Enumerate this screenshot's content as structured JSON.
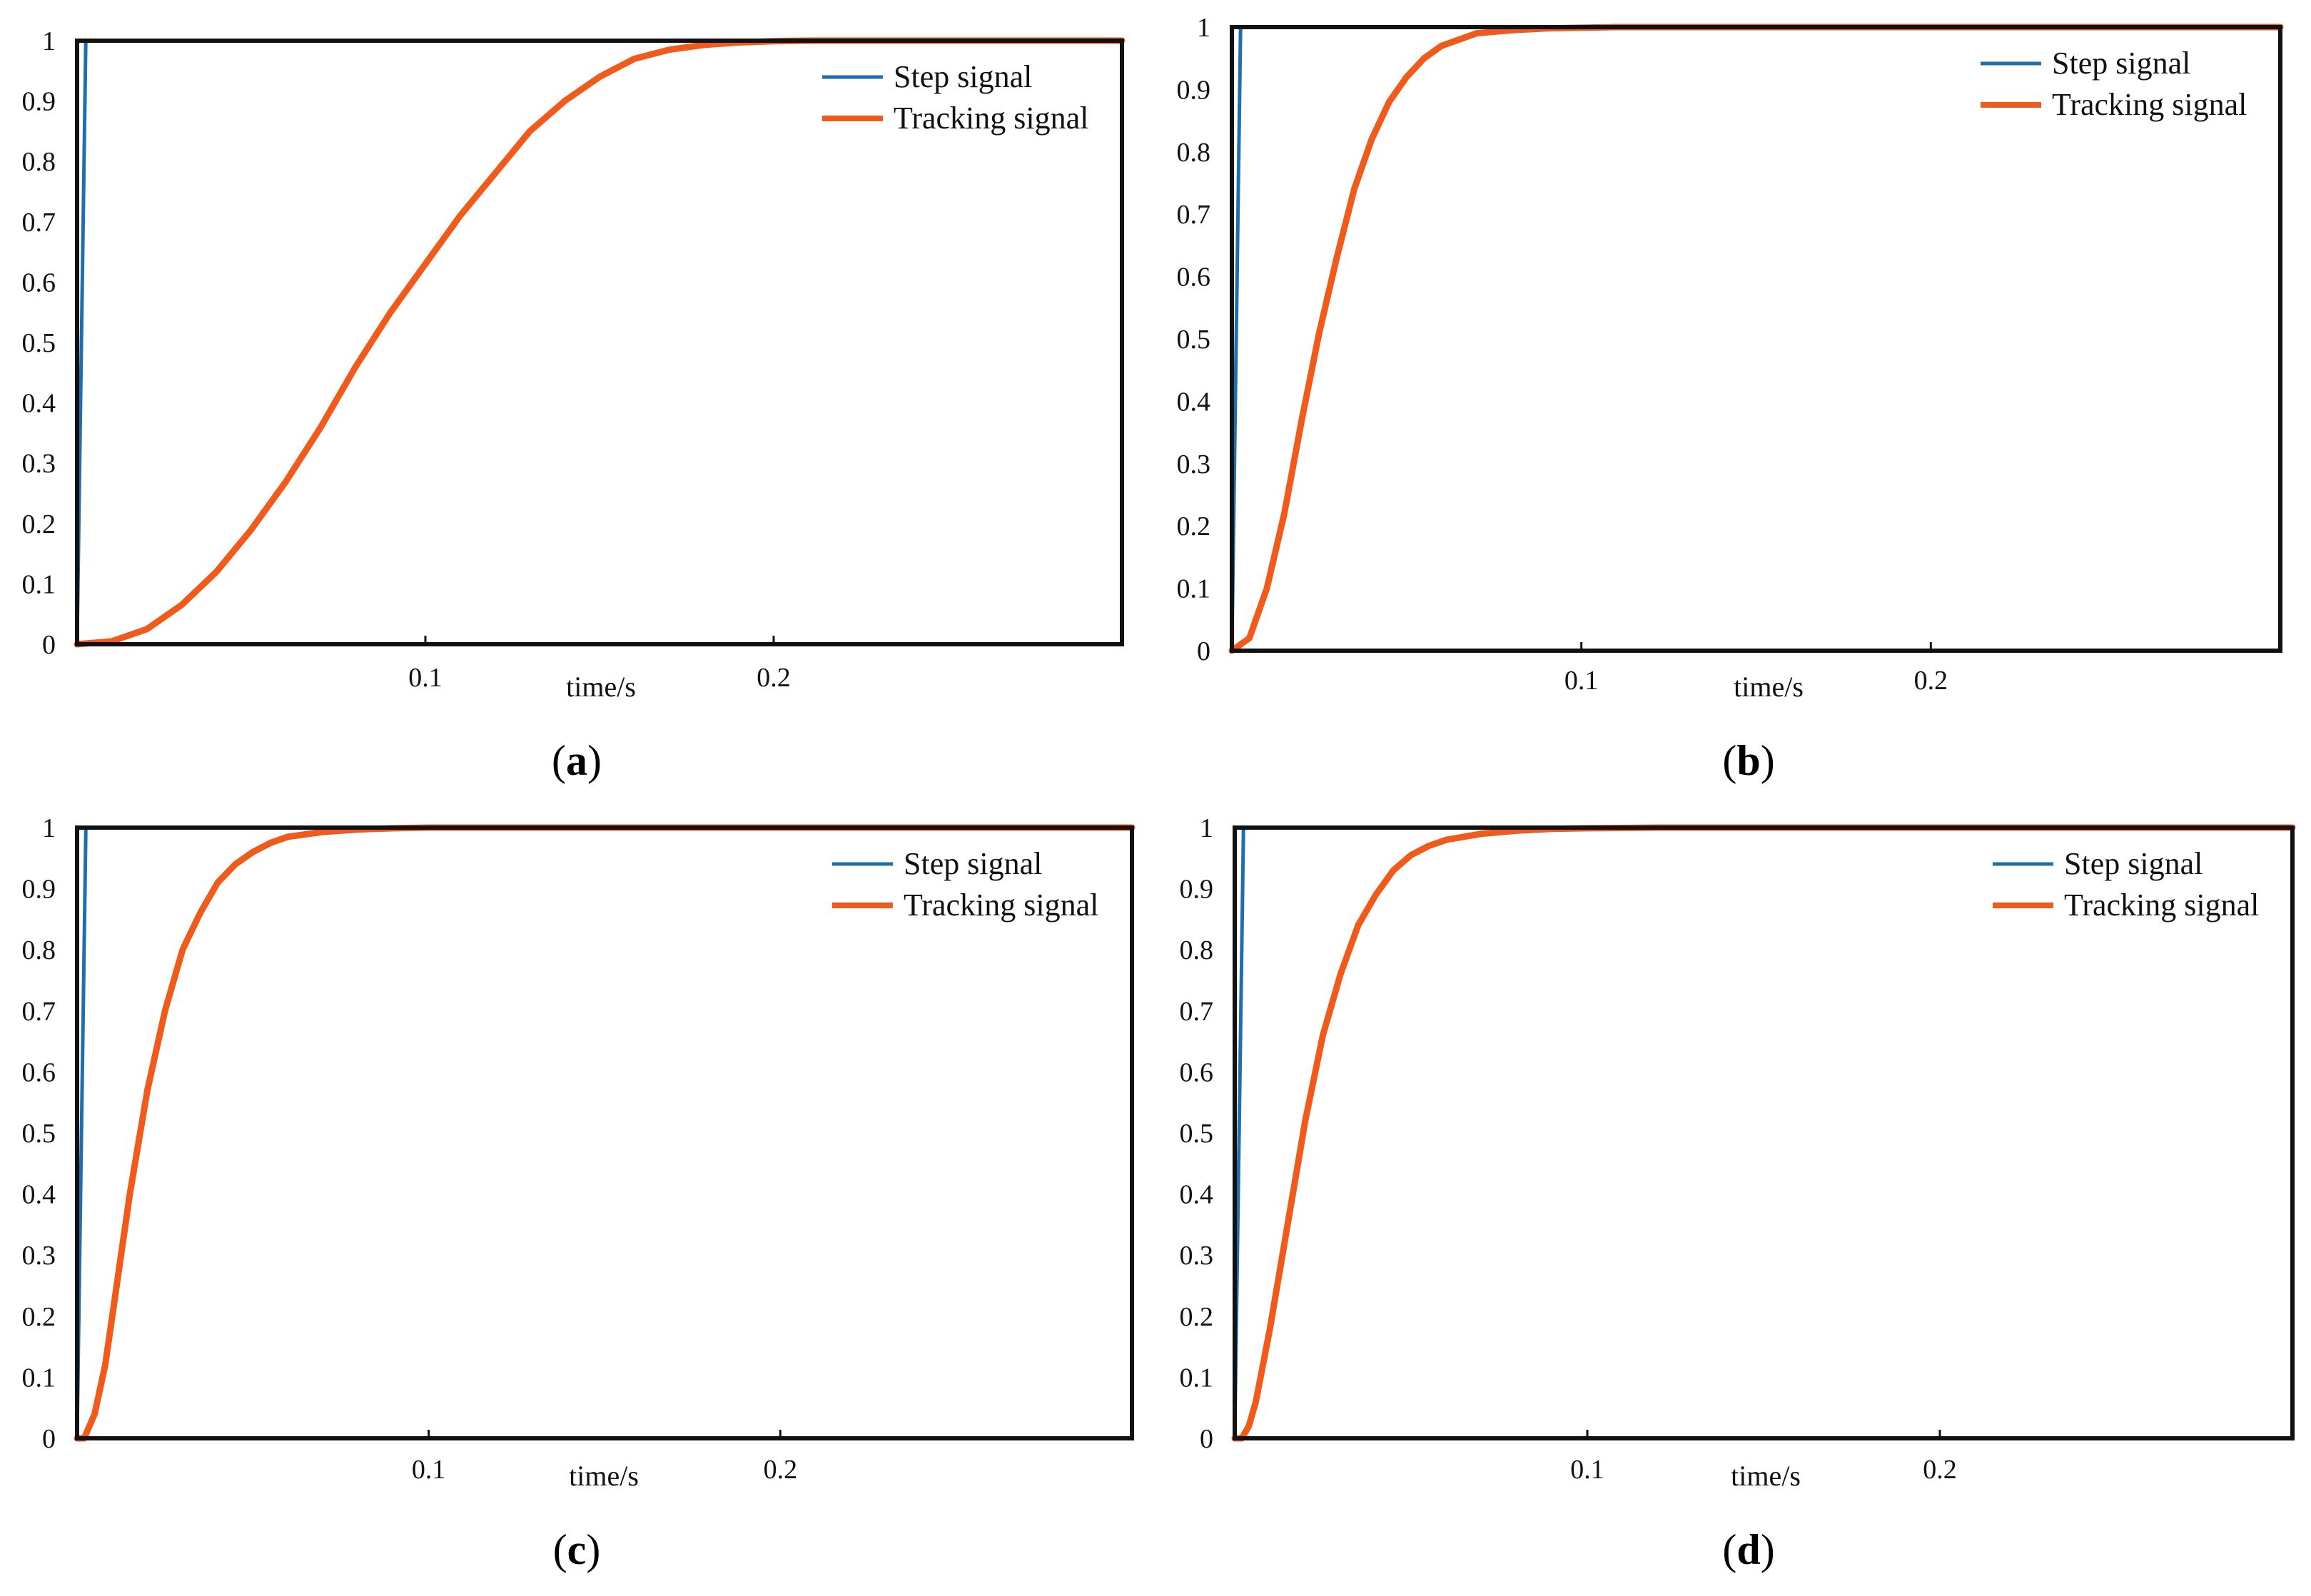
{
  "figure": {
    "colors": {
      "step": "#1f6fb0",
      "tracking": "#f05a1a",
      "frame": "#111111"
    }
  },
  "chart_data": [
    {
      "panel": "(a)",
      "caption_letter": "a",
      "type": "line",
      "xlabel": "time/s",
      "ylabel": "",
      "xlim": [
        0,
        0.3
      ],
      "ylim": [
        0,
        1
      ],
      "xticks": [
        0.1,
        0.2
      ],
      "xtick_labels": [
        "0.1",
        "0.2"
      ],
      "yticks": [
        0,
        0.1,
        0.2,
        0.3,
        0.4,
        0.5,
        0.6,
        0.7,
        0.8,
        0.9,
        1
      ],
      "ytick_labels": [
        "0",
        "0.1",
        "0.2",
        "0.3",
        "0.4",
        "0.5",
        "0.6",
        "0.7",
        "0.8",
        "0.9",
        "1"
      ],
      "legend_position": "top-right",
      "series": [
        {
          "name": "Step signal",
          "color": "#1f6fb0",
          "x": [
            0,
            0.0025,
            0.3
          ],
          "y": [
            0,
            1,
            1
          ]
        },
        {
          "name": "Tracking signal",
          "color": "#f05a1a",
          "x": [
            0,
            0.01,
            0.02,
            0.03,
            0.04,
            0.05,
            0.06,
            0.07,
            0.08,
            0.09,
            0.1,
            0.11,
            0.12,
            0.13,
            0.14,
            0.15,
            0.16,
            0.17,
            0.18,
            0.19,
            0.2,
            0.21,
            0.22,
            0.23,
            0.25,
            0.3
          ],
          "y": [
            0,
            0.005,
            0.025,
            0.065,
            0.12,
            0.19,
            0.27,
            0.36,
            0.46,
            0.55,
            0.63,
            0.71,
            0.78,
            0.85,
            0.9,
            0.94,
            0.97,
            0.985,
            0.993,
            0.997,
            0.999,
            1.0,
            1.0,
            1.0,
            1.0,
            1.0
          ]
        }
      ]
    },
    {
      "panel": "(b)",
      "caption_letter": "b",
      "type": "line",
      "xlabel": "time/s",
      "ylabel": "",
      "xlim": [
        0,
        0.3
      ],
      "ylim": [
        0,
        1
      ],
      "xticks": [
        0.1,
        0.2
      ],
      "xtick_labels": [
        "0.1",
        "0.2"
      ],
      "yticks": [
        0,
        0.1,
        0.2,
        0.3,
        0.4,
        0.5,
        0.6,
        0.7,
        0.8,
        0.9,
        1
      ],
      "ytick_labels": [
        "0",
        "0.1",
        "0.2",
        "0.3",
        "0.4",
        "0.5",
        "0.6",
        "0.7",
        "0.8",
        "0.9",
        "1"
      ],
      "legend_position": "top-right",
      "series": [
        {
          "name": "Step signal",
          "color": "#1f6fb0",
          "x": [
            0,
            0.0025,
            0.3
          ],
          "y": [
            0,
            1,
            1
          ]
        },
        {
          "name": "Tracking signal",
          "color": "#f05a1a",
          "x": [
            0,
            0.005,
            0.01,
            0.015,
            0.02,
            0.025,
            0.03,
            0.035,
            0.04,
            0.045,
            0.05,
            0.055,
            0.06,
            0.065,
            0.07,
            0.08,
            0.09,
            0.1,
            0.11,
            0.12,
            0.15,
            0.3
          ],
          "y": [
            0,
            0.02,
            0.1,
            0.22,
            0.37,
            0.51,
            0.63,
            0.74,
            0.82,
            0.88,
            0.92,
            0.95,
            0.97,
            0.98,
            0.99,
            0.995,
            0.998,
            0.999,
            1.0,
            1.0,
            1.0,
            1.0
          ]
        }
      ]
    },
    {
      "panel": "(c)",
      "caption_letter": "c",
      "type": "line",
      "xlabel": "time/s",
      "ylabel": "",
      "xlim": [
        0,
        0.3
      ],
      "ylim": [
        0,
        1
      ],
      "xticks": [
        0.1,
        0.2
      ],
      "xtick_labels": [
        "0.1",
        "0.2"
      ],
      "yticks": [
        0,
        0.1,
        0.2,
        0.3,
        0.4,
        0.5,
        0.6,
        0.7,
        0.8,
        0.9,
        1
      ],
      "ytick_labels": [
        "0",
        "0.1",
        "0.2",
        "0.3",
        "0.4",
        "0.5",
        "0.6",
        "0.7",
        "0.8",
        "0.9",
        "1"
      ],
      "legend_position": "top-right",
      "series": [
        {
          "name": "Step signal",
          "color": "#1f6fb0",
          "x": [
            0,
            0.0025,
            0.3
          ],
          "y": [
            0,
            1,
            1
          ]
        },
        {
          "name": "Tracking signal",
          "color": "#f05a1a",
          "x": [
            0,
            0.002,
            0.005,
            0.008,
            0.01,
            0.015,
            0.02,
            0.025,
            0.03,
            0.035,
            0.04,
            0.045,
            0.05,
            0.055,
            0.06,
            0.07,
            0.08,
            0.09,
            0.1,
            0.12,
            0.15,
            0.3
          ],
          "y": [
            0,
            0.0,
            0.04,
            0.12,
            0.2,
            0.4,
            0.57,
            0.7,
            0.8,
            0.86,
            0.91,
            0.94,
            0.96,
            0.975,
            0.985,
            0.993,
            0.997,
            0.999,
            1.0,
            1.0,
            1.0,
            1.0
          ]
        }
      ]
    },
    {
      "panel": "(d)",
      "caption_letter": "d",
      "type": "line",
      "xlabel": "time/s",
      "ylabel": "",
      "xlim": [
        0,
        0.3
      ],
      "ylim": [
        0,
        1
      ],
      "xticks": [
        0.1,
        0.2
      ],
      "xtick_labels": [
        "0.1",
        "0.2"
      ],
      "yticks": [
        0,
        0.1,
        0.2,
        0.3,
        0.4,
        0.5,
        0.6,
        0.7,
        0.8,
        0.9,
        1
      ],
      "ytick_labels": [
        "0",
        "0.1",
        "0.2",
        "0.3",
        "0.4",
        "0.5",
        "0.6",
        "0.7",
        "0.8",
        "0.9",
        "1"
      ],
      "legend_position": "top-right",
      "series": [
        {
          "name": "Step signal",
          "color": "#1f6fb0",
          "x": [
            0,
            0.0025,
            0.3
          ],
          "y": [
            0,
            1,
            1
          ]
        },
        {
          "name": "Tracking signal",
          "color": "#f05a1a",
          "x": [
            0,
            0.002,
            0.004,
            0.006,
            0.008,
            0.01,
            0.015,
            0.02,
            0.025,
            0.03,
            0.035,
            0.04,
            0.045,
            0.05,
            0.055,
            0.06,
            0.07,
            0.08,
            0.09,
            0.1,
            0.12,
            0.15,
            0.3
          ],
          "y": [
            0,
            0.0,
            0.02,
            0.06,
            0.12,
            0.18,
            0.35,
            0.52,
            0.66,
            0.76,
            0.84,
            0.89,
            0.93,
            0.955,
            0.97,
            0.98,
            0.99,
            0.995,
            0.998,
            0.999,
            1.0,
            1.0,
            1.0
          ]
        }
      ]
    }
  ]
}
